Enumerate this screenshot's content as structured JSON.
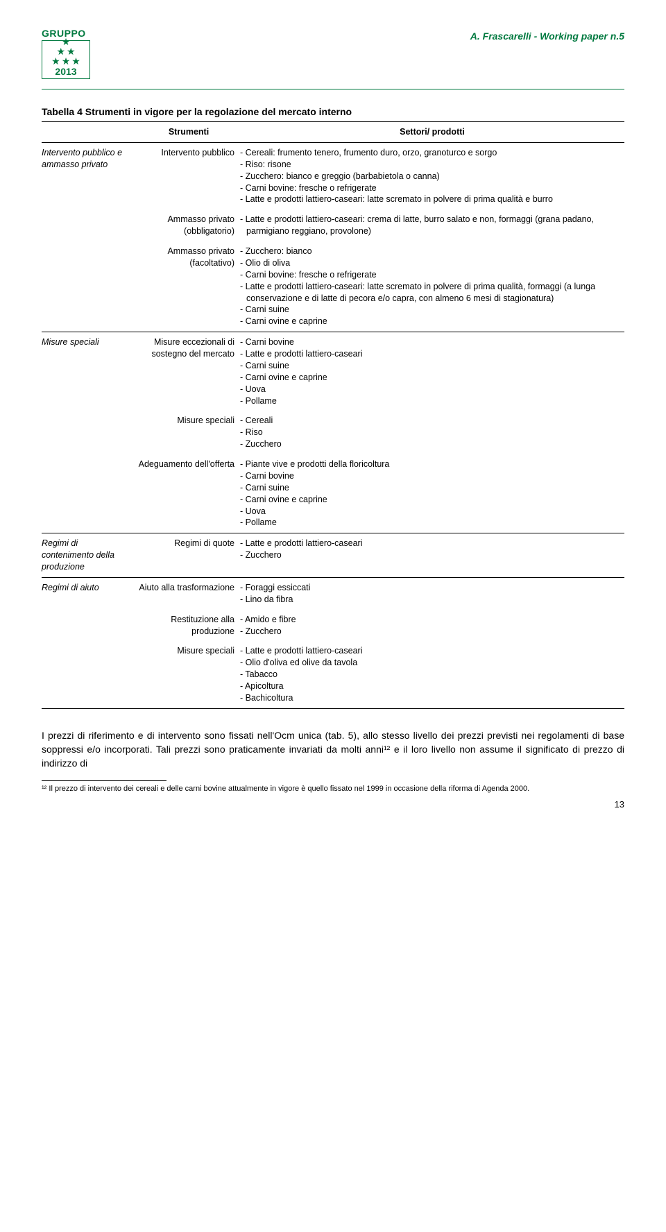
{
  "header": {
    "logo_label": "GRUPPO",
    "year": "2013",
    "right_text": "A. Frascarelli - Working paper n.5"
  },
  "table_title": "Tabella 4 Strumenti in vigore per la regolazione del mercato interno",
  "columns": {
    "c1": "",
    "c2": "Strumenti",
    "c3": "Settori/ prodotti"
  },
  "groups": [
    {
      "label": "Intervento pubblico e ammasso privato",
      "rows": [
        {
          "strumento": "Intervento pubblico",
          "items": [
            "- Cereali: frumento tenero, frumento duro, orzo, granoturco e sorgo",
            "- Riso: risone",
            "- Zucchero: bianco e greggio (barbabietola o canna)",
            "- Carni bovine: fresche o refrigerate",
            "- Latte e prodotti lattiero-caseari: latte scremato in polvere di prima qualità e burro"
          ]
        },
        {
          "strumento": "Ammasso privato (obbligatorio)",
          "items": [
            "- Latte e prodotti lattiero-caseari: crema di latte, burro salato e non, formaggi (grana padano, parmigiano reggiano, provolone)"
          ]
        },
        {
          "strumento": "Ammasso privato (facoltativo)",
          "items": [
            "- Zucchero: bianco",
            "- Olio di oliva",
            "- Carni bovine: fresche o refrigerate",
            "- Latte e prodotti lattiero-caseari: latte scremato in polvere di prima qualità, formaggi (a lunga conservazione e di latte di pecora e/o capra, con almeno 6 mesi di stagionatura)",
            "- Carni suine",
            "- Carni ovine e caprine"
          ]
        }
      ]
    },
    {
      "label": "Misure speciali",
      "rows": [
        {
          "strumento": "Misure eccezionali di sostegno del mercato",
          "items": [
            "- Carni bovine",
            "- Latte e prodotti lattiero-caseari",
            "- Carni suine",
            "- Carni ovine e caprine",
            "- Uova",
            "- Pollame"
          ]
        },
        {
          "strumento": "Misure speciali",
          "items": [
            "- Cereali",
            "- Riso",
            "- Zucchero"
          ]
        },
        {
          "strumento": "Adeguamento dell'offerta",
          "items": [
            "- Piante vive e prodotti della floricoltura",
            "- Carni bovine",
            "- Carni suine",
            "- Carni ovine e caprine",
            "- Uova",
            "- Pollame"
          ]
        }
      ]
    },
    {
      "label": "Regimi di contenimento della produzione",
      "rows": [
        {
          "strumento": "Regimi di quote",
          "items": [
            "- Latte e prodotti lattiero-caseari",
            "- Zucchero"
          ]
        }
      ]
    },
    {
      "label": "Regimi di aiuto",
      "rows": [
        {
          "strumento": "Aiuto alla trasformazione",
          "items": [
            "- Foraggi essiccati",
            "- Lino da fibra"
          ]
        },
        {
          "strumento": "Restituzione alla produzione",
          "items": [
            "- Amido e fibre",
            "- Zucchero"
          ]
        },
        {
          "strumento": "Misure speciali",
          "items": [
            "- Latte e prodotti lattiero-caseari",
            "- Olio d'oliva ed olive da tavola",
            "- Tabacco",
            "- Apicoltura",
            "- Bachicoltura"
          ]
        }
      ]
    }
  ],
  "body_paragraph": "I prezzi di riferimento e di intervento sono fissati nell'Ocm unica (tab. 5), allo stesso livello dei prezzi previsti nei regolamenti di base soppressi e/o incorporati. Tali prezzi sono praticamente invariati da molti anni¹² e il loro livello non assume il significato di prezzo di indirizzo di",
  "footnote": "¹² Il prezzo di intervento dei cereali e delle carni bovine attualmente in vigore è quello fissato nel 1999 in occasione della riforma di Agenda 2000.",
  "page_number": "13"
}
